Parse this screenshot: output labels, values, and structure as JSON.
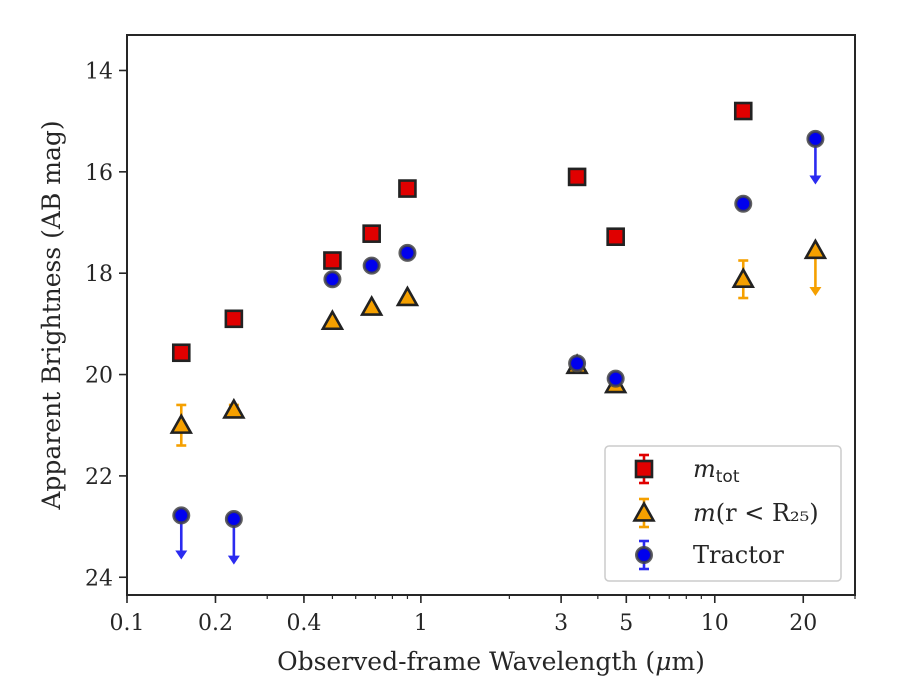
{
  "chart_data": {
    "type": "scatter",
    "xscale": "log",
    "yscale": "linear",
    "y_inverted": true,
    "xlim": [
      0.1,
      30
    ],
    "ylim": [
      24.35,
      13.3
    ],
    "xlabel_prefix": "Observed-frame Wavelength (",
    "xlabel_mu": "μ",
    "xlabel_suffix": "m)",
    "ylabel": "Apparent Brightness (AB mag)",
    "x_ticks": [
      {
        "value": 0.1,
        "label": "0.1"
      },
      {
        "value": 0.2,
        "label": "0.2"
      },
      {
        "value": 0.4,
        "label": "0.4"
      },
      {
        "value": 1,
        "label": "1"
      },
      {
        "value": 3,
        "label": "3"
      },
      {
        "value": 5,
        "label": "5"
      },
      {
        "value": 10,
        "label": "10"
      },
      {
        "value": 20,
        "label": "20"
      }
    ],
    "y_ticks": [
      {
        "value": 14,
        "label": "14"
      },
      {
        "value": 16,
        "label": "16"
      },
      {
        "value": 18,
        "label": "18"
      },
      {
        "value": 20,
        "label": "20"
      },
      {
        "value": 22,
        "label": "22"
      },
      {
        "value": 24,
        "label": "24"
      }
    ],
    "legend": {
      "position": "lower right",
      "entries": [
        {
          "text_italic": "m",
          "text_sub": "tot",
          "text_rest": ""
        },
        {
          "text_italic": "m",
          "text_sub": "",
          "text_rest": "(r < R₂₅)"
        },
        {
          "text_italic": "",
          "text_sub": "",
          "text_rest": "Tractor"
        }
      ]
    },
    "series": [
      {
        "marker": "square",
        "color": "#e00000",
        "errcolor": "#e00000",
        "points": [
          {
            "x": 0.153,
            "y": 19.57
          },
          {
            "x": 0.231,
            "y": 18.9
          },
          {
            "x": 0.5,
            "y": 17.75
          },
          {
            "x": 0.68,
            "y": 17.22
          },
          {
            "x": 0.9,
            "y": 16.33
          },
          {
            "x": 3.4,
            "y": 16.1
          },
          {
            "x": 4.6,
            "y": 17.28
          },
          {
            "x": 12.5,
            "y": 14.8
          }
        ]
      },
      {
        "marker": "triangle",
        "color": "#f5a000",
        "errcolor": "#f5a000",
        "points": [
          {
            "x": 0.153,
            "y": 21.0,
            "err": 0.4
          },
          {
            "x": 0.231,
            "y": 20.7,
            "err": 0.1
          },
          {
            "x": 0.5,
            "y": 18.95
          },
          {
            "x": 0.68,
            "y": 18.67
          },
          {
            "x": 0.9,
            "y": 18.48
          },
          {
            "x": 3.4,
            "y": 19.82
          },
          {
            "x": 4.6,
            "y": 20.2
          },
          {
            "x": 12.5,
            "y": 18.12,
            "err": 0.37
          },
          {
            "x": 22.0,
            "y": 17.55,
            "limit_to": 18.45
          }
        ]
      },
      {
        "marker": "circle",
        "color": "#0000ee",
        "errcolor": "#2b2bf0",
        "points": [
          {
            "x": 0.153,
            "y": 22.78,
            "limit_to": 23.65
          },
          {
            "x": 0.231,
            "y": 22.85,
            "limit_to": 23.75
          },
          {
            "x": 0.5,
            "y": 18.12
          },
          {
            "x": 0.68,
            "y": 17.85
          },
          {
            "x": 0.9,
            "y": 17.6
          },
          {
            "x": 3.4,
            "y": 19.78
          },
          {
            "x": 4.6,
            "y": 20.08
          },
          {
            "x": 12.5,
            "y": 16.63
          },
          {
            "x": 22.0,
            "y": 15.35,
            "limit_to": 16.25
          }
        ]
      }
    ]
  }
}
